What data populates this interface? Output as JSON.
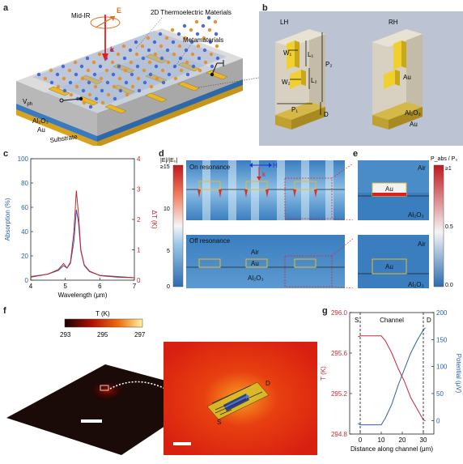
{
  "labels": {
    "a": "a",
    "b": "b",
    "c": "c",
    "d": "d",
    "e": "e",
    "f": "f",
    "g": "g"
  },
  "panel_a": {
    "mid_ir": "Mid-IR",
    "e_field": "E",
    "k_vec": "k",
    "thermo": "2D Thermoelectric Materials",
    "meta": "Metamaterials",
    "vph": "V",
    "vph_sub": "ph",
    "al2o3": "Al₂O₃",
    "au": "Au",
    "substrate": "Substrate"
  },
  "panel_b": {
    "lh": "LH",
    "rh": "RH",
    "w1": "W₁",
    "l1": "L₁",
    "w2": "W₂",
    "l2": "L₂",
    "p2": "P₂",
    "p1": "P₁",
    "d": "D",
    "au_top": "Au",
    "al2o3": "Al₂O₃",
    "au_bottom": "Au"
  },
  "chart_data": [
    {
      "type": "line",
      "panel": "c",
      "xlabel": "Wavelength (μm)",
      "ylabel": "Absorption (%)",
      "y2label": "ΔT (K)",
      "xlim": [
        4,
        7
      ],
      "ylim": [
        0,
        100
      ],
      "y2lim": [
        0,
        4
      ],
      "xticks": [
        "4",
        "5",
        "6",
        "7"
      ],
      "yticks": [
        "0",
        "20",
        "40",
        "60",
        "80",
        "100"
      ],
      "y2ticks": [
        "0",
        "1",
        "2",
        "3",
        "4"
      ],
      "series": [
        {
          "axis": "left",
          "color": "#2a5fb0",
          "x": [
            4.0,
            4.5,
            4.8,
            4.95,
            5.05,
            5.15,
            5.25,
            5.32,
            5.38,
            5.45,
            5.55,
            5.7,
            6.0,
            6.5,
            7.0
          ],
          "y": [
            3,
            5,
            8,
            12,
            10,
            14,
            32,
            58,
            48,
            24,
            12,
            7,
            4,
            3,
            2
          ]
        },
        {
          "axis": "right",
          "color": "#d0202a",
          "x": [
            4.0,
            4.5,
            4.8,
            4.95,
            5.05,
            5.15,
            5.25,
            5.32,
            5.38,
            5.45,
            5.55,
            5.7,
            6.0,
            6.5,
            7.0
          ],
          "y": [
            0.1,
            0.2,
            0.35,
            0.55,
            0.4,
            0.6,
            1.6,
            2.95,
            2.2,
            1.0,
            0.5,
            0.3,
            0.15,
            0.1,
            0.08
          ]
        }
      ]
    },
    {
      "type": "line",
      "panel": "g",
      "xlabel": "Distance along channel (μm)",
      "ylabel": "T (K)",
      "y2label": "Potential (μV)",
      "xlim": [
        -5,
        35
      ],
      "ylim": [
        294.8,
        296.0
      ],
      "y2lim": [
        -25,
        200
      ],
      "xticks": [
        "0",
        "10",
        "20",
        "30"
      ],
      "yticks": [
        "294.8",
        "295.2",
        "295.6",
        "296.0"
      ],
      "y2ticks": [
        "0",
        "50",
        "100",
        "150",
        "200"
      ],
      "series": [
        {
          "axis": "left",
          "color": "#c8283a",
          "x": [
            -1,
            0,
            5,
            10,
            12,
            15,
            18,
            21,
            24,
            27,
            30,
            31
          ],
          "y": [
            295.76,
            295.77,
            295.77,
            295.77,
            295.72,
            295.6,
            295.45,
            295.32,
            295.16,
            295.05,
            294.94,
            294.93
          ]
        },
        {
          "axis": "right",
          "color": "#2a5fb0",
          "x": [
            -1,
            0,
            5,
            10,
            12,
            15,
            18,
            21,
            24,
            27,
            30,
            31
          ],
          "y": [
            -5,
            -8,
            -8,
            -8,
            5,
            30,
            65,
            95,
            125,
            148,
            168,
            172
          ]
        }
      ]
    }
  ],
  "panel_d": {
    "colorbar_title": "|E|/|E₀|",
    "cb_ticks": [
      "≥15",
      "10",
      "5",
      "0"
    ],
    "on_res": "On resonance",
    "off_res": "Off resonance",
    "h": "H",
    "k": "k",
    "air": "Air",
    "au": "Au",
    "al2o3": "Al₂O₃"
  },
  "panel_e": {
    "colorbar_title": "P_abs / P₀",
    "cb_ticks": [
      "≥1",
      "0.5",
      "0.0"
    ],
    "air": "Air",
    "au": "Au",
    "al2o3": "Al₂O₃"
  },
  "panel_f": {
    "cb_title": "T (K)",
    "cb_ticks": [
      "293",
      "295",
      "297"
    ],
    "s": "S",
    "d": "D"
  },
  "panel_g": {
    "s": "S",
    "channel": "Channel",
    "d": "D"
  }
}
